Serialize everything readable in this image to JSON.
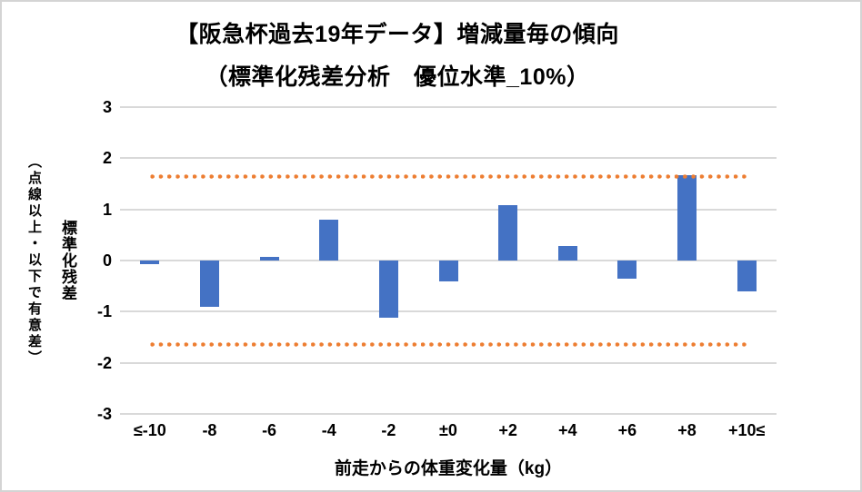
{
  "chart_data": {
    "type": "bar",
    "title": "【阪急杯過去19年データ】増減量毎の傾向",
    "subtitle": "（標準化残差分析　優位水準_10%）",
    "categories": [
      "≤-10",
      "-8",
      "-6",
      "-4",
      "-2",
      "±0",
      "+2",
      "+4",
      "+6",
      "+8",
      "+10≤"
    ],
    "values": [
      -0.07,
      -0.91,
      0.07,
      0.8,
      -1.11,
      -0.41,
      1.08,
      0.28,
      -0.35,
      1.67,
      -0.61
    ],
    "xlabel": "前走からの体重変化量（kg）",
    "ylabel_main": "標準化残差",
    "ylabel_sub": "（点線以上・以下で有意差）",
    "ylim": [
      -3,
      3
    ],
    "yticks": [
      3,
      2,
      1,
      0,
      -1,
      -2,
      -3
    ],
    "significance_lines": [
      1.645,
      -1.645
    ],
    "legend": "none",
    "grid": true,
    "colors": {
      "bar": "#4472C4",
      "significance_dots": "#ED7D31",
      "gridline": "#D9D9D9",
      "text": "#000000",
      "frame_border": "#D4D4D4"
    }
  }
}
